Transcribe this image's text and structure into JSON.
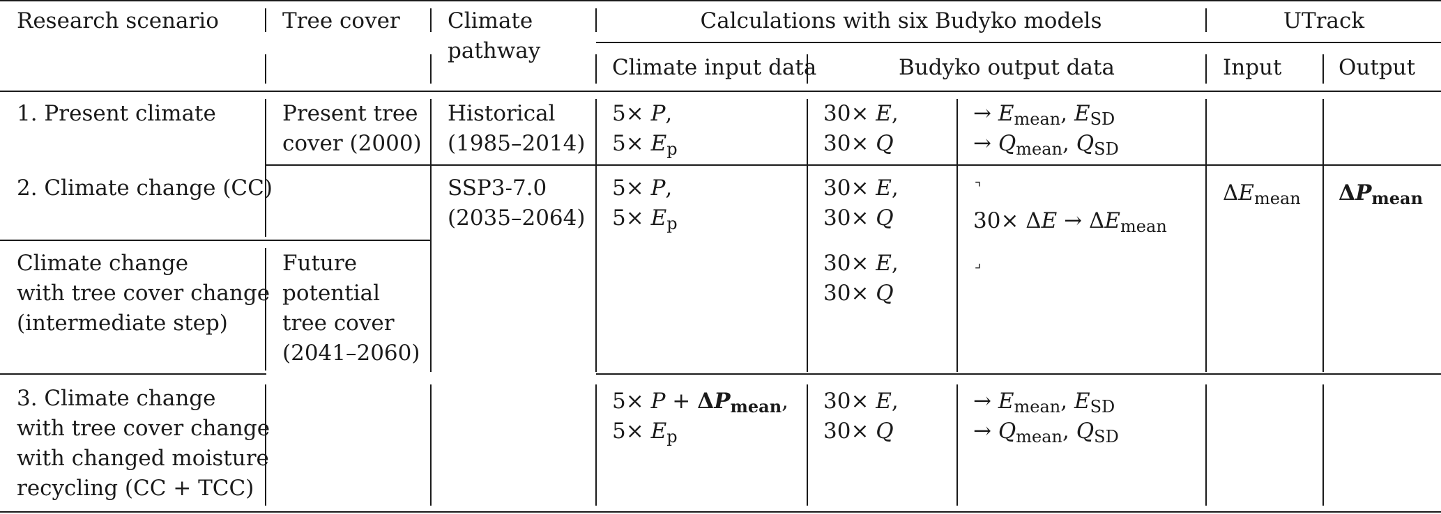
{
  "header": {
    "research_scenario": "Research scenario",
    "tree_cover": "Tree cover",
    "climate_pathway_1": "Climate",
    "climate_pathway_2": "pathway",
    "budyko_group": "Calculations with six Budyko models",
    "utrack_group": "UTrack",
    "climate_input": "Climate input data",
    "budyko_output": "Budyko output data",
    "utrack_input": "Input",
    "utrack_output": "Output"
  },
  "rows": {
    "r1": {
      "scenario": "1. Present climate",
      "tree_cover_1": "Present tree",
      "tree_cover_2": "cover (2000)",
      "pathway_1": "Historical",
      "pathway_2": "(1985–2014)",
      "input_1_count": "5×",
      "input_1_var": "P",
      "input_2_count": "5×",
      "input_2_var": "E",
      "input_2_sub": "p",
      "out_1_count": "30×",
      "out_1_var": "E",
      "out_2_count": "30×",
      "out_2_var": "Q",
      "stat_1_arrow": "→",
      "stat_1_a": "E",
      "stat_1_a_sub": "mean",
      "stat_1_b": "E",
      "stat_1_b_sub": "SD",
      "stat_2_arrow": "→",
      "stat_2_a": "Q",
      "stat_2_a_sub": "mean",
      "stat_2_b": "Q",
      "stat_2_b_sub": "SD"
    },
    "r2": {
      "scenario": "2. Climate change (CC)",
      "pathway_1": "SSP3-7.0",
      "pathway_2": "(2035–2064)",
      "input_1_count": "5×",
      "input_1_var": "P",
      "input_2_count": "5×",
      "input_2_var": "E",
      "input_2_sub": "p",
      "out_1_count": "30×",
      "out_1_var": "E",
      "out_2_count": "30×",
      "out_2_var": "Q",
      "stat_1_arrow": "⌝",
      "stat_2_count": "30×",
      "stat_2_delta": "Δ",
      "stat_2_var": "E",
      "stat_2_arrow": "→",
      "stat_2_delta2": "Δ",
      "stat_2_var2": "E",
      "stat_2_sub": "mean",
      "utrack_input_delta": "Δ",
      "utrack_input_var": "E",
      "utrack_input_sub": "mean",
      "utrack_output_delta": "Δ",
      "utrack_output_var": "P",
      "utrack_output_sub": "mean"
    },
    "r2b": {
      "scenario_1": "Climate change",
      "scenario_2": "with tree cover change",
      "scenario_3": "(intermediate step)",
      "tree_cover_1": "Future",
      "tree_cover_2": "potential",
      "tree_cover_3": "tree cover",
      "tree_cover_4": "(2041–2060)",
      "out_1_count": "30×",
      "out_1_var": "E",
      "out_2_count": "30×",
      "out_2_var": "Q",
      "stat_1_arrow": "⌟"
    },
    "r3": {
      "scenario_1": "3. Climate change",
      "scenario_2": "with tree cover change",
      "scenario_3": "with changed moisture",
      "scenario_4": "recycling (CC + TCC)",
      "input_1_count": "5×",
      "input_1_var": "P",
      "input_1_plus": "+",
      "input_1_delta": "Δ",
      "input_1_dvar": "P",
      "input_1_dsub": "mean",
      "input_2_count": "5×",
      "input_2_var": "E",
      "input_2_sub": "p",
      "out_1_count": "30×",
      "out_1_var": "E",
      "out_2_count": "30×",
      "out_2_var": "Q",
      "stat_1_arrow": "→",
      "stat_1_a": "E",
      "stat_1_a_sub": "mean",
      "stat_1_b": "E",
      "stat_1_b_sub": "SD",
      "stat_2_arrow": "→",
      "stat_2_a": "Q",
      "stat_2_a_sub": "mean",
      "stat_2_b": "Q",
      "stat_2_b_sub": "SD"
    }
  }
}
